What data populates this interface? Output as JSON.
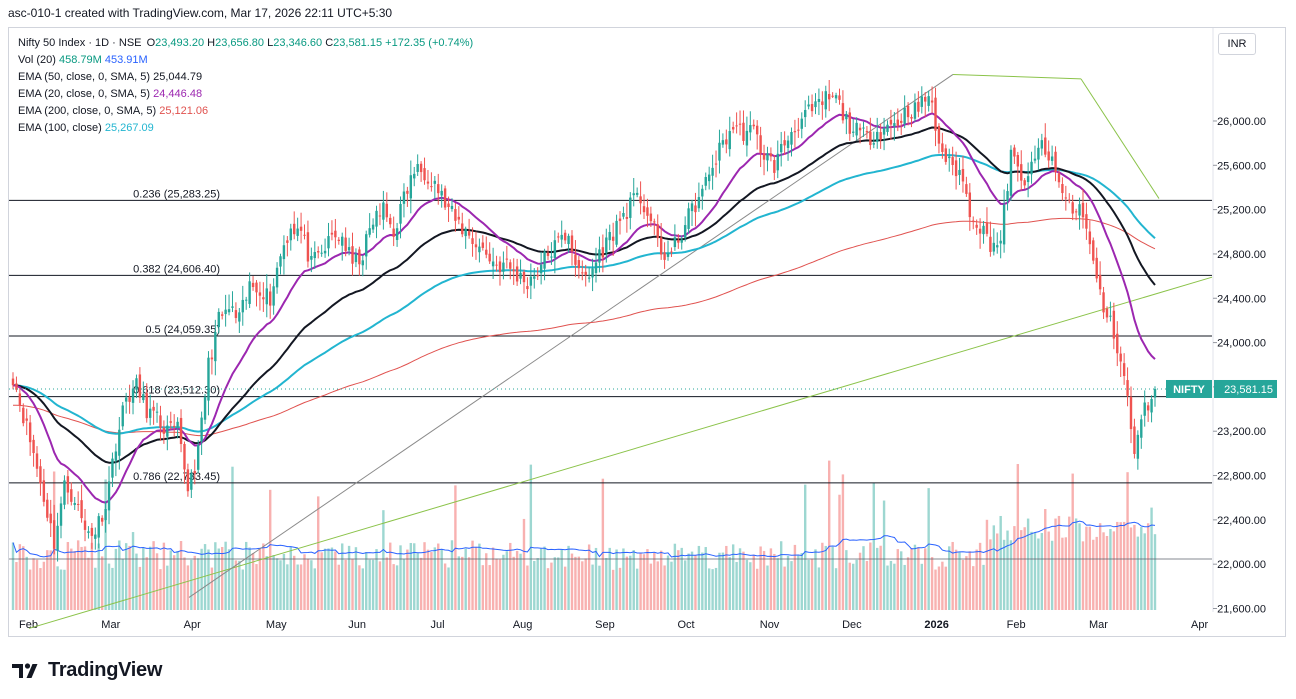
{
  "caption": "asc-010-1 created with TradingView.com, Mar 17, 2026 22:11 UTC+5:30",
  "legend": {
    "symbol": "Nifty 50 Index · 1D · NSE",
    "o_label": "O",
    "o_value": "23,493.20",
    "h_label": "H",
    "h_value": "23,656.80",
    "l_label": "L",
    "l_value": "23,346.60",
    "c_label": "C",
    "c_value": "23,581.15",
    "change": "+172.35 (+0.74%)",
    "vol_label": "Vol (20)",
    "vol_value1": "458.79M",
    "vol_value2": "453.91M",
    "ema50_label": "EMA (50, close, 0, SMA, 5)",
    "ema50_value": "25,044.79",
    "ema20_label": "EMA (20, close, 0, SMA, 5)",
    "ema20_value": "24,446.48",
    "ema200_label": "EMA (200, close, 0, SMA, 5)",
    "ema200_value": "25,121.06",
    "ema100_label": "EMA (100, close)",
    "ema100_value": "25,267.09"
  },
  "currency_button": "INR",
  "price_tag": {
    "label": "NIFTY",
    "value": "23,581.15"
  },
  "brand": "TradingView",
  "colors": {
    "up": "#26a69a",
    "down": "#ef5350",
    "ema50": "#131722",
    "ema20": "#9c27b0",
    "ema200": "#e0524f",
    "ema100": "#22b5d0",
    "volma": "#2962ff",
    "trend": "#8bc34a",
    "fib": "#131722"
  },
  "chart_data": {
    "type": "candlestick",
    "title": "Nifty 50 Index · 1D · NSE",
    "y_axis": {
      "ticks": [
        21600,
        22000,
        22400,
        22800,
        23200,
        23600,
        24000,
        24400,
        24800,
        25200,
        25600,
        26000
      ],
      "range": [
        21600,
        26600
      ],
      "side": "right"
    },
    "x_axis": {
      "labels": [
        "Feb",
        "Mar",
        "Apr",
        "May",
        "Jun",
        "Jul",
        "Aug",
        "Sep",
        "Oct",
        "Nov",
        "Dec",
        "2026",
        "Feb",
        "Mar",
        "Apr"
      ]
    },
    "last_close": 23581.15,
    "fib_levels": [
      {
        "ratio": "0.236",
        "price": 25283.25,
        "label": "0.236 (25,283.25)"
      },
      {
        "ratio": "0.382",
        "price": 24606.4,
        "label": "0.382 (24,606.40)"
      },
      {
        "ratio": "0.5",
        "price": 24059.35,
        "label": "0.5 (24,059.35)"
      },
      {
        "ratio": "0.618",
        "price": 23512.3,
        "label": "0.618 (23,512.30)"
      },
      {
        "ratio": "0.786",
        "price": 22733.45,
        "label": "0.786 (22,733.45)"
      }
    ],
    "months": [
      {
        "label": "Feb",
        "values": [
          23700,
          23350,
          23000,
          22600,
          22200,
          22700,
          22600,
          22300
        ]
      },
      {
        "label": "Mar",
        "values": [
          22300,
          22550,
          23100,
          23500,
          23600,
          23400,
          23300,
          23200
        ]
      },
      {
        "label": "Apr",
        "values": [
          23200,
          22700,
          23000,
          23800,
          24200,
          24300,
          24200,
          24500
        ]
      },
      {
        "label": "May",
        "values": [
          24500,
          24400,
          24800,
          25050,
          25000,
          24700,
          24800,
          24950
        ]
      },
      {
        "label": "Jun",
        "values": [
          24950,
          24700,
          24800,
          25100,
          25200,
          25000,
          25300,
          25550
        ]
      },
      {
        "label": "Jul",
        "values": [
          25550,
          25450,
          25250,
          25100,
          25000,
          24900,
          24800,
          24700
        ]
      },
      {
        "label": "Aug",
        "values": [
          24700,
          24600,
          24550,
          24650,
          24800,
          24900,
          25000,
          24600
        ]
      },
      {
        "label": "Sep",
        "values": [
          24600,
          24800,
          24950,
          25100,
          25250,
          25300,
          25100,
          24800
        ]
      },
      {
        "label": "Oct",
        "values": [
          24800,
          25000,
          25200,
          25350,
          25600,
          25800,
          25950,
          25900
        ]
      },
      {
        "label": "Nov",
        "values": [
          25900,
          25700,
          25600,
          25800,
          25950,
          26050,
          26100,
          26200
        ]
      },
      {
        "label": "Dec",
        "values": [
          26200,
          26000,
          25900,
          25850,
          25900,
          25950,
          26000,
          26100
        ]
      },
      {
        "label": "2026",
        "values": [
          26100,
          26250,
          25800,
          25600,
          25550,
          25200,
          25050,
          24900
        ]
      },
      {
        "label": "Feb",
        "values": [
          24900,
          25700,
          25450,
          25550,
          25800,
          25600,
          25350,
          25200
        ]
      },
      {
        "label": "Mar",
        "values": [
          25200,
          24700,
          24300,
          24100,
          23700,
          23000,
          23400,
          23581
        ]
      }
    ],
    "ema_last": {
      "ema50": 25044.79,
      "ema20": 24446.48,
      "ema200": 25121.06,
      "ema100": 25267.09
    },
    "volume": {
      "indicator": "Vol (20)",
      "current": "458.79M",
      "ma": "453.91M"
    }
  }
}
